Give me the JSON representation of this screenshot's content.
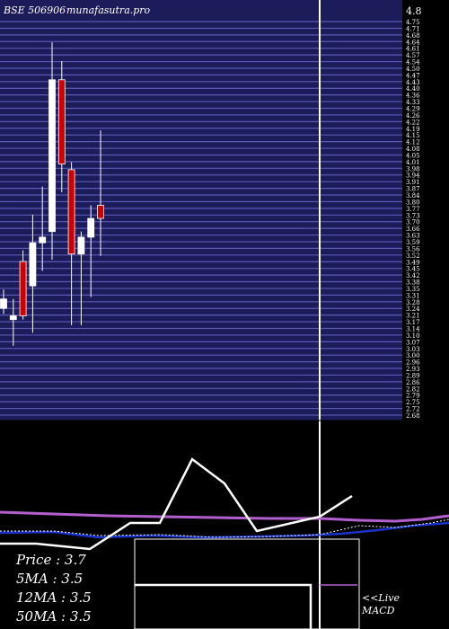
{
  "header": {
    "symbol": "BSE 506906",
    "site": "munafasutra.pro"
  },
  "chart_data": {
    "type": "candlestick",
    "yaxis": {
      "top_label": "4.8",
      "ticks": [
        "4.75",
        "4.71",
        "4.68",
        "4.64",
        "4.61",
        "4.57",
        "4.54",
        "4.50",
        "4.47",
        "4.43",
        "4.40",
        "4.36",
        "4.33",
        "4.29",
        "4.26",
        "4.22",
        "4.19",
        "4.15",
        "4.12",
        "4.08",
        "4.05",
        "4.01",
        "3.98",
        "3.94",
        "3.91",
        "3.87",
        "3.84",
        "3.80",
        "3.77",
        "3.73",
        "3.70",
        "3.66",
        "3.63",
        "3.59",
        "3.56",
        "3.52",
        "3.49",
        "3.45",
        "3.42",
        "3.38",
        "3.35",
        "3.31",
        "3.28",
        "3.24",
        "3.21",
        "3.17",
        "3.14",
        "3.10",
        "3.07",
        "3.03",
        "3.00",
        "2.96",
        "2.93",
        "2.89",
        "2.86",
        "2.82",
        "2.79",
        "2.75",
        "2.72",
        "2.68"
      ],
      "range": [
        2.68,
        4.8
      ]
    },
    "candles": [
      {
        "open": 3.25,
        "high": 3.35,
        "low": 3.22,
        "close": 3.3,
        "color": "white"
      },
      {
        "open": 3.19,
        "high": 3.3,
        "low": 3.05,
        "close": 3.21,
        "color": "white"
      },
      {
        "open": 3.5,
        "high": 3.56,
        "low": 3.19,
        "close": 3.21,
        "color": "red"
      },
      {
        "open": 3.37,
        "high": 3.75,
        "low": 3.12,
        "close": 3.6,
        "color": "white"
      },
      {
        "open": 3.6,
        "high": 3.9,
        "low": 3.45,
        "close": 3.63,
        "color": "white"
      },
      {
        "open": 3.66,
        "high": 4.67,
        "low": 3.51,
        "close": 4.47,
        "color": "white"
      },
      {
        "open": 4.47,
        "high": 4.57,
        "low": 3.87,
        "close": 4.02,
        "color": "red"
      },
      {
        "open": 3.99,
        "high": 4.03,
        "low": 3.16,
        "close": 3.54,
        "color": "red"
      },
      {
        "open": 3.54,
        "high": 3.66,
        "low": 3.16,
        "close": 3.63,
        "color": "white"
      },
      {
        "open": 3.63,
        "high": 3.8,
        "low": 3.31,
        "close": 3.73,
        "color": "white"
      },
      {
        "open": 3.8,
        "high": 4.2,
        "low": 3.53,
        "close": 3.73,
        "color": "red"
      }
    ],
    "colors": {
      "panel_bg": "#1c1c5a",
      "gridline": "#5a5ab4",
      "up_candle": "#ffffff",
      "down_candle": "#cc0000",
      "ma_purple": "#b35fd0",
      "ma_blue": "#1a33cc",
      "macd_line": "#ffffff"
    }
  },
  "stats": {
    "price": "Price   : 3.7",
    "ma5": "5MA : 3.5",
    "ma12": "12MA : 3.5",
    "ma50": "50MA : 3.5"
  },
  "live_macd": {
    "line1": "<<Live",
    "line2": "MACD"
  }
}
